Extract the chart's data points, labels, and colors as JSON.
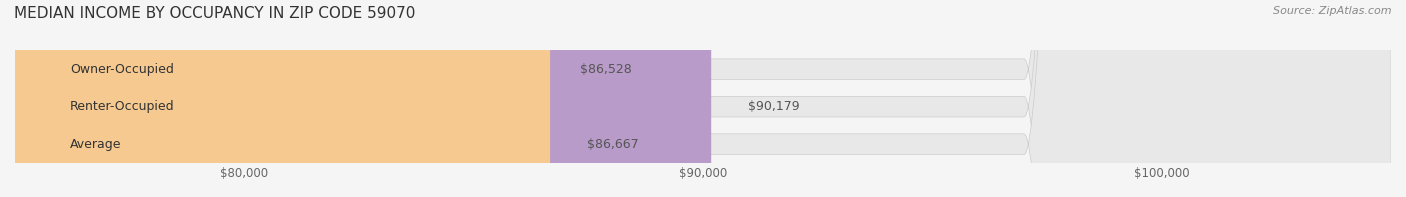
{
  "title": "MEDIAN INCOME BY OCCUPANCY IN ZIP CODE 59070",
  "source": "Source: ZipAtlas.com",
  "categories": [
    "Owner-Occupied",
    "Renter-Occupied",
    "Average"
  ],
  "values": [
    86528,
    90179,
    86667
  ],
  "value_labels": [
    "$86,528",
    "$90,179",
    "$86,667"
  ],
  "bar_colors": [
    "#6dcdd1",
    "#b89bc8",
    "#f5c990"
  ],
  "bar_bg_color": "#e8e8e8",
  "xlim_min": 75000,
  "xlim_max": 105000,
  "xticks": [
    80000,
    90000,
    100000
  ],
  "xtick_labels": [
    "$80,000",
    "$90,000",
    "$100,000"
  ],
  "title_fontsize": 11,
  "source_fontsize": 8,
  "label_fontsize": 9,
  "tick_fontsize": 8.5,
  "bar_height": 0.55,
  "background_color": "#f5f5f5"
}
